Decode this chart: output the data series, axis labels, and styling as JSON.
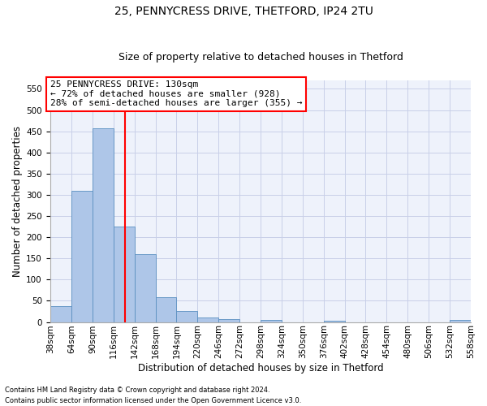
{
  "title1": "25, PENNYCRESS DRIVE, THETFORD, IP24 2TU",
  "title2": "Size of property relative to detached houses in Thetford",
  "xlabel": "Distribution of detached houses by size in Thetford",
  "ylabel": "Number of detached properties",
  "footer1": "Contains HM Land Registry data © Crown copyright and database right 2024.",
  "footer2": "Contains public sector information licensed under the Open Government Licence v3.0.",
  "annotation_line1": "25 PENNYCRESS DRIVE: 130sqm",
  "annotation_line2": "← 72% of detached houses are smaller (928)",
  "annotation_line3": "28% of semi-detached houses are larger (355) →",
  "bar_values": [
    38,
    310,
    457,
    225,
    160,
    58,
    25,
    10,
    7,
    0,
    5,
    0,
    0,
    3,
    0,
    0,
    0,
    0,
    0,
    4
  ],
  "categories": [
    "38sqm",
    "64sqm",
    "90sqm",
    "116sqm",
    "142sqm",
    "168sqm",
    "194sqm",
    "220sqm",
    "246sqm",
    "272sqm",
    "298sqm",
    "324sqm",
    "350sqm",
    "376sqm",
    "402sqm",
    "428sqm",
    "454sqm",
    "480sqm",
    "506sqm",
    "532sqm",
    "558sqm"
  ],
  "bar_color": "#aec6e8",
  "bar_edge_color": "#5a8fc0",
  "vline_color": "red",
  "annotation_box_color": "red",
  "ylim": [
    0,
    570
  ],
  "yticks": [
    0,
    50,
    100,
    150,
    200,
    250,
    300,
    350,
    400,
    450,
    500,
    550
  ],
  "bg_color": "#eef2fb",
  "grid_color": "#c8cfe8",
  "title1_fontsize": 10,
  "title2_fontsize": 9,
  "xlabel_fontsize": 8.5,
  "ylabel_fontsize": 8.5,
  "tick_fontsize": 7.5,
  "annotation_fontsize": 8
}
